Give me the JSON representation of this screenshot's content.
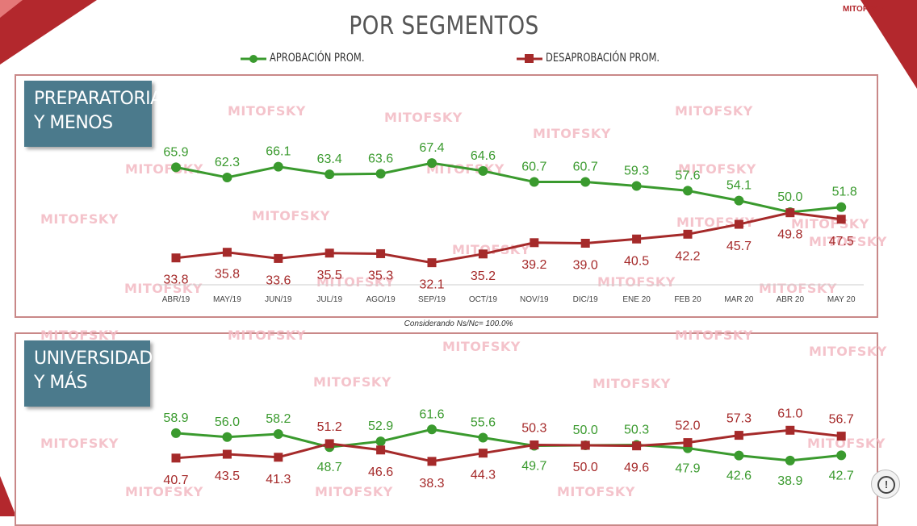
{
  "heading": "POR SEGMENTOS",
  "brand": "MITOFSKY",
  "legend": {
    "approval": "APROBACIÓN PROM.",
    "disapproval": "DESAPROBACIÓN PROM."
  },
  "colors": {
    "approval": "#3a9a2e",
    "disapproval": "#a52a2a",
    "label_bg": "#4b7a8c",
    "border": "#c98888"
  },
  "note": "Considerando Ns/Nc= 100.0%",
  "watermark_text": "MITOFSKY",
  "icons": [
    "approval-line-legend-icon",
    "disapproval-line-legend-icon",
    "info-icon"
  ],
  "chart_data": [
    {
      "type": "line",
      "title": "PREPARATORIA\nY MENOS",
      "categories": [
        "ABR/19",
        "MAY/19",
        "JUN/19",
        "JUL/19",
        "AGO/19",
        "SEP/19",
        "OCT/19",
        "NOV/19",
        "DIC/19",
        "ENE 20",
        "FEB 20",
        "MAR 20",
        "ABR 20",
        "MAY 20"
      ],
      "series": [
        {
          "name": "APROBACIÓN PROM.",
          "values": [
            65.9,
            62.3,
            66.1,
            63.4,
            63.6,
            67.4,
            64.6,
            60.7,
            60.7,
            59.3,
            57.6,
            54.1,
            50.0,
            51.8
          ]
        },
        {
          "name": "DESAPROBACIÓN PROM.",
          "values": [
            33.8,
            35.8,
            33.6,
            35.5,
            35.3,
            32.1,
            35.2,
            39.2,
            39.0,
            40.5,
            42.2,
            45.7,
            49.8,
            47.5
          ]
        }
      ]
    },
    {
      "type": "line",
      "title": "UNIVERSIDAD\nY MÁS",
      "categories": [
        "ABR/19",
        "MAY/19",
        "JUN/19",
        "JUL/19",
        "AGO/19",
        "SEP/19",
        "OCT/19",
        "NOV/19",
        "DIC/19",
        "ENE 20",
        "FEB 20",
        "MAR 20",
        "ABR 20",
        "MAY 20"
      ],
      "series": [
        {
          "name": "APROBACIÓN PROM.",
          "values": [
            58.9,
            56.0,
            58.2,
            48.7,
            52.9,
            61.6,
            55.6,
            49.7,
            50.0,
            50.3,
            47.9,
            42.6,
            38.9,
            42.7
          ]
        },
        {
          "name": "DESAPROBACIÓN PROM.",
          "values": [
            40.7,
            43.5,
            41.3,
            51.2,
            46.6,
            38.3,
            44.3,
            50.3,
            50.0,
            49.6,
            52.0,
            57.3,
            61.0,
            56.7
          ]
        }
      ]
    }
  ]
}
